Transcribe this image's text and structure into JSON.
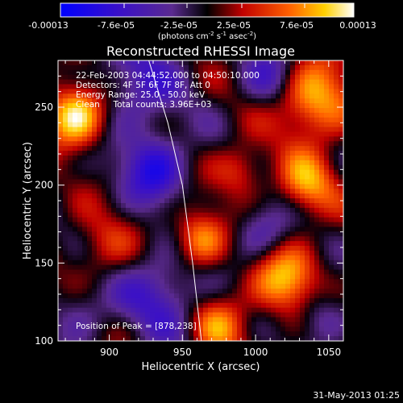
{
  "chart_data": {
    "type": "heatmap",
    "title": "Reconstructed RHESSI Image",
    "xlabel": "Heliocentric X (arcsec)",
    "ylabel": "Heliocentric Y (arcsec)",
    "xlim": [
      865,
      1060
    ],
    "ylim": [
      100,
      280
    ],
    "xticks": [
      "900",
      "950",
      "1000",
      "1050"
    ],
    "yticks": [
      "100",
      "150",
      "200",
      "250"
    ],
    "colorbar": {
      "range": [
        -0.00013,
        0.00013
      ],
      "ticks": [
        "-0.00013",
        "-7.6e-05",
        "-2.5e-05",
        "2.5e-05",
        "7.6e-05",
        "0.00013"
      ],
      "unit_prefix": "(photons cm",
      "unit_sup1": "-2",
      "unit_mid1": " s",
      "unit_sup2": "-1",
      "unit_mid2": " asec",
      "unit_sup3": "-2",
      "unit_suffix": ")"
    },
    "annotations": {
      "time_range": "22-Feb-2003 04:44:52.000 to 04:50:10.000",
      "detectors": "Detectors: 4F 5F 6F 7F 8F, Att 0",
      "energy_range": "Energy Range: 25.0 - 50.0 keV",
      "clean": "Clean     Total counts: 3.96E+03",
      "peak": "Position of Peak = [878,238]"
    },
    "limb": [
      [
        927,
        280
      ],
      [
        940,
        240
      ],
      [
        950,
        200
      ],
      [
        957,
        150
      ],
      [
        963,
        100
      ]
    ],
    "features": [
      {
        "x": 877,
        "y": 245,
        "sigma": 14,
        "amp": 1.0
      },
      {
        "x": 1040,
        "y": 255,
        "sigma": 18,
        "amp": 0.8
      },
      {
        "x": 1035,
        "y": 200,
        "sigma": 14,
        "amp": 0.65
      },
      {
        "x": 990,
        "y": 210,
        "sigma": 12,
        "amp": 0.45
      },
      {
        "x": 962,
        "y": 165,
        "sigma": 13,
        "amp": 0.7
      },
      {
        "x": 1020,
        "y": 140,
        "sigma": 16,
        "amp": 0.75
      },
      {
        "x": 975,
        "y": 110,
        "sigma": 14,
        "amp": 0.55
      },
      {
        "x": 895,
        "y": 160,
        "sigma": 16,
        "amp": 0.35
      },
      {
        "x": 930,
        "y": 210,
        "sigma": 16,
        "amp": -0.7
      },
      {
        "x": 920,
        "y": 265,
        "sigma": 20,
        "amp": -0.5
      },
      {
        "x": 935,
        "y": 130,
        "sigma": 20,
        "amp": -0.55
      },
      {
        "x": 1010,
        "y": 270,
        "sigma": 14,
        "amp": -0.45
      },
      {
        "x": 1005,
        "y": 170,
        "sigma": 14,
        "amp": -0.45
      },
      {
        "x": 1045,
        "y": 115,
        "sigma": 12,
        "amp": -0.4
      },
      {
        "x": 880,
        "y": 120,
        "sigma": 14,
        "amp": -0.3
      }
    ]
  },
  "footer": {
    "date": "31-May-2013 01:25"
  }
}
